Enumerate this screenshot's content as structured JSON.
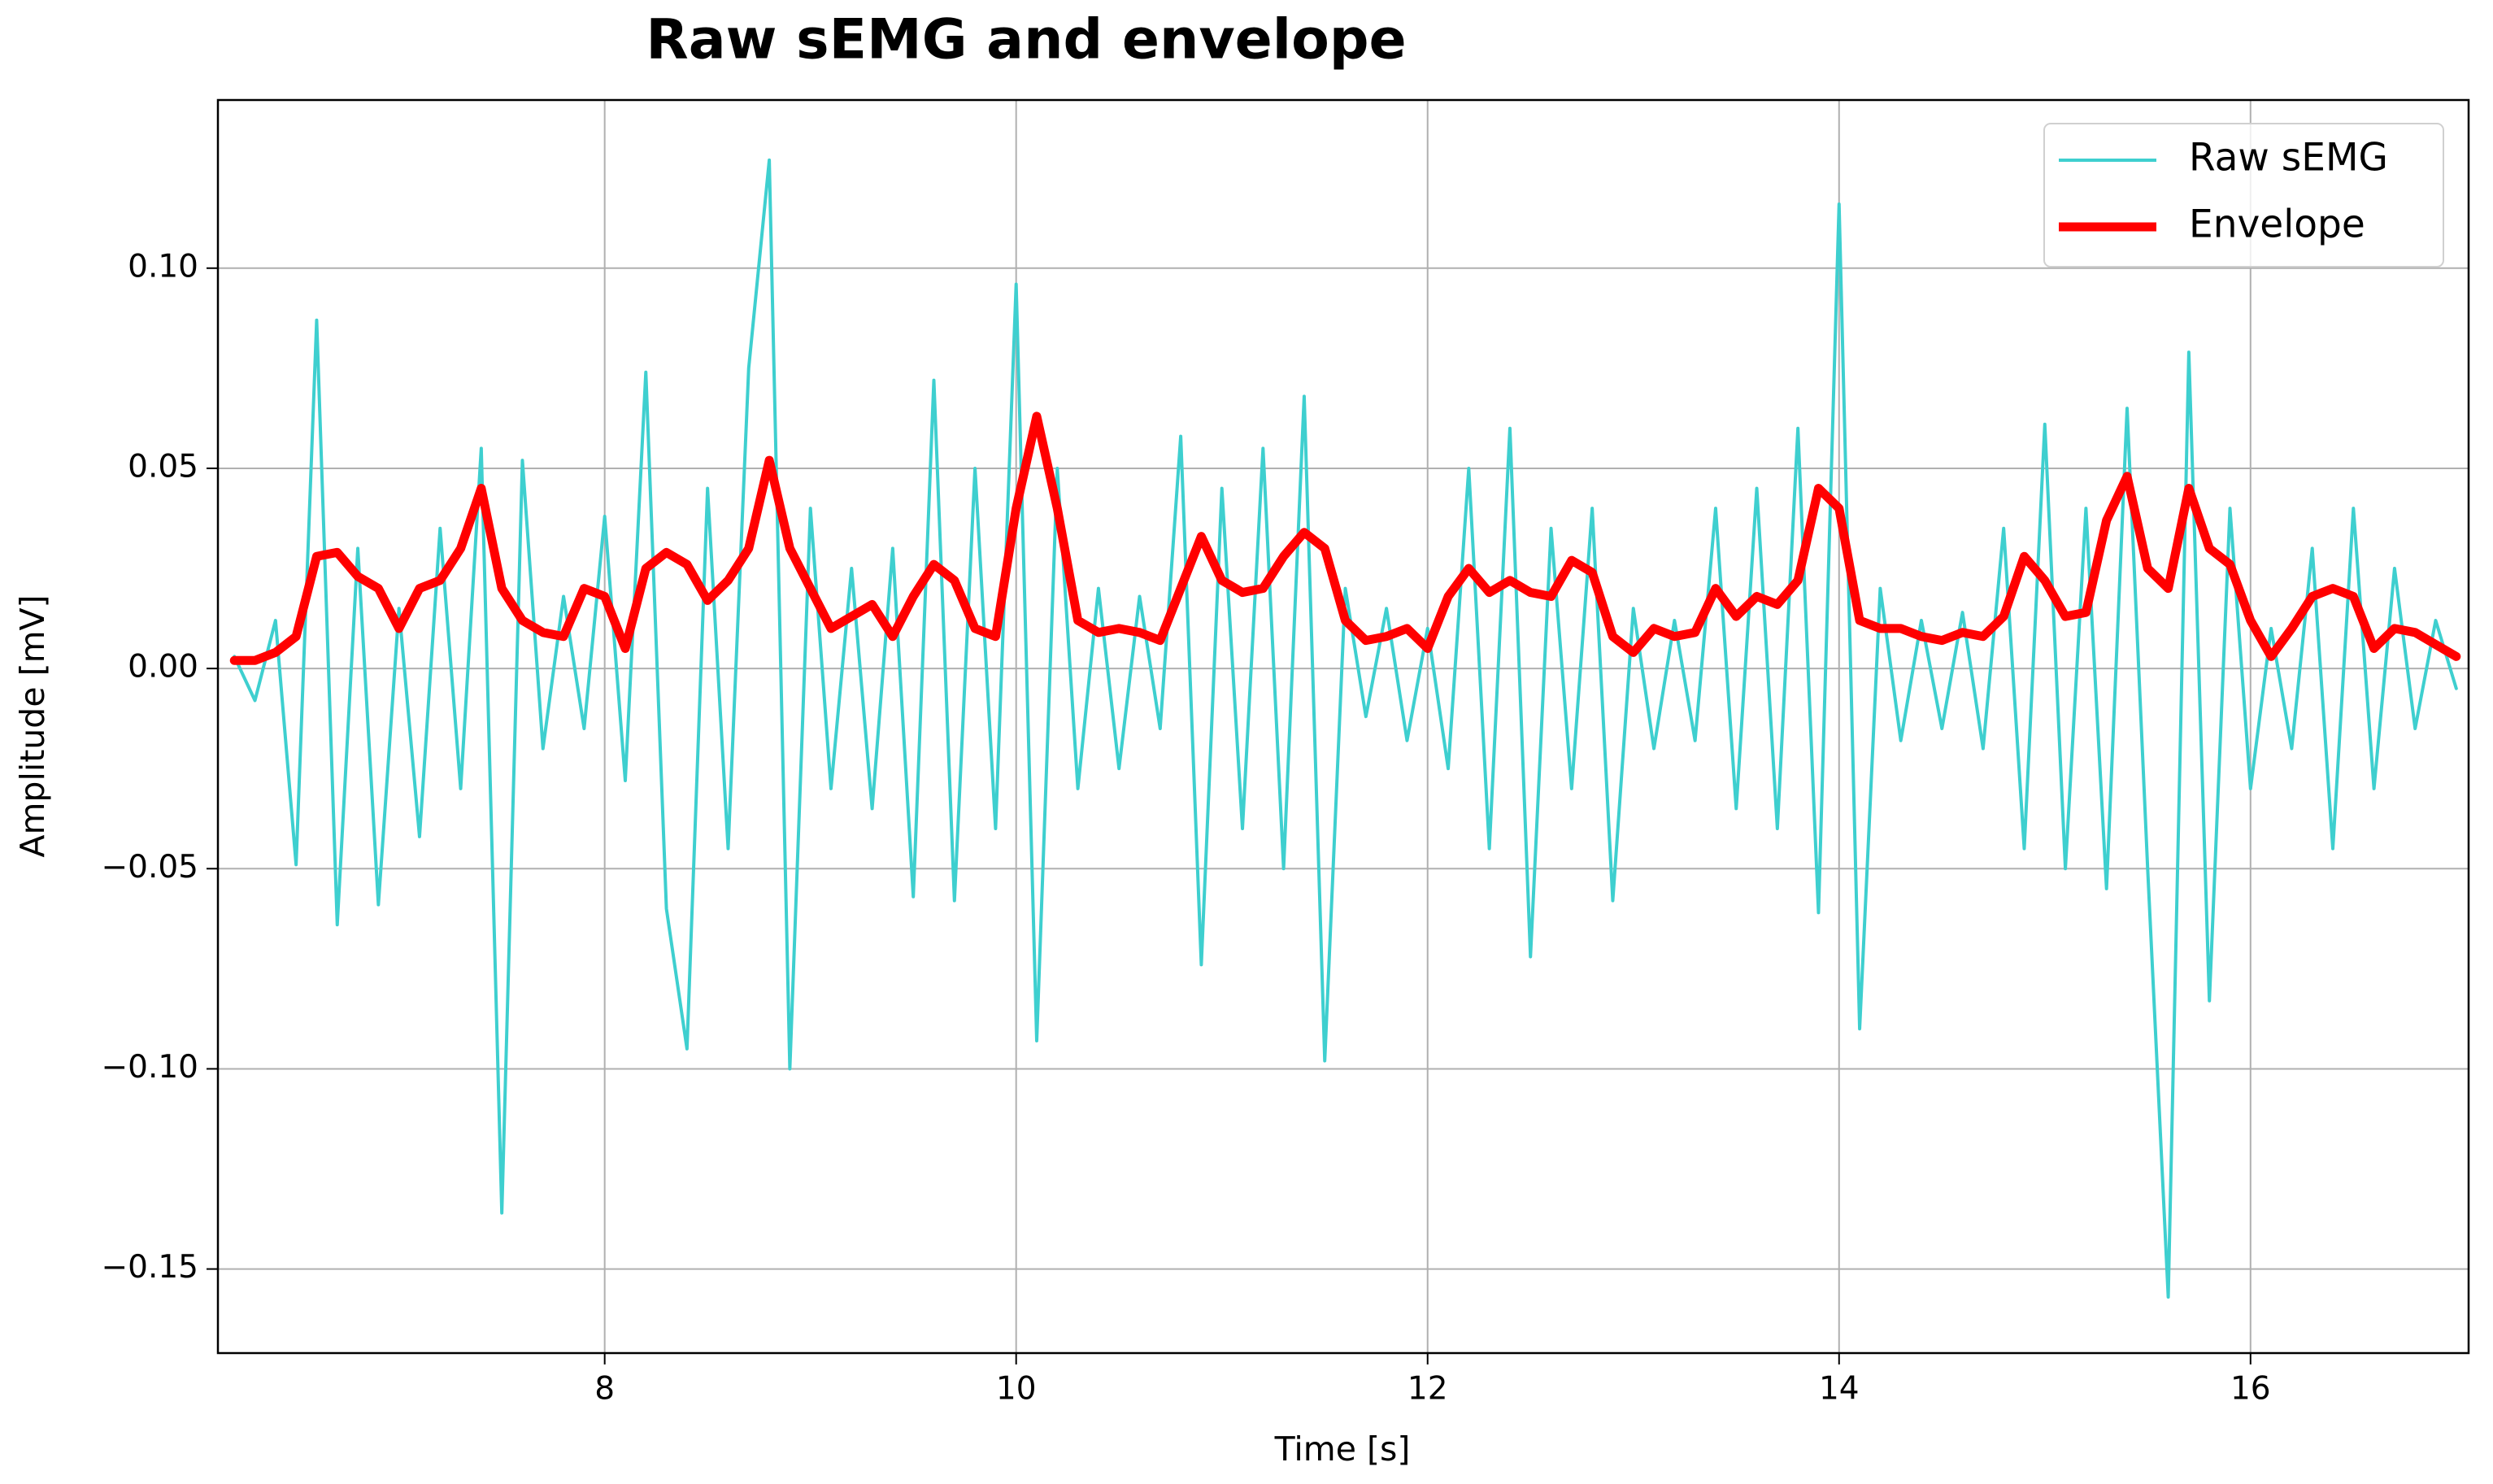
{
  "chart_data": {
    "type": "line",
    "title": "Raw sEMG and envelope",
    "xlabel": "Time [s]",
    "ylabel": "Amplitude [mV]",
    "x": [
      6.2,
      6.3,
      6.4,
      6.5,
      6.6,
      6.7,
      6.8,
      6.9,
      7.0,
      7.1,
      7.2,
      7.3,
      7.4,
      7.5,
      7.6,
      7.7,
      7.8,
      7.9,
      8.0,
      8.1,
      8.2,
      8.3,
      8.4,
      8.5,
      8.6,
      8.7,
      8.8,
      8.9,
      9.0,
      9.1,
      9.2,
      9.3,
      9.4,
      9.5,
      9.6,
      9.7,
      9.8,
      9.9,
      10.0,
      10.1,
      10.2,
      10.3,
      10.4,
      10.5,
      10.6,
      10.7,
      10.8,
      10.9,
      11.0,
      11.1,
      11.2,
      11.3,
      11.4,
      11.5,
      11.6,
      11.7,
      11.8,
      11.9,
      12.0,
      12.1,
      12.2,
      12.3,
      12.4,
      12.5,
      12.6,
      12.7,
      12.8,
      12.9,
      13.0,
      13.1,
      13.2,
      13.3,
      13.4,
      13.5,
      13.6,
      13.7,
      13.8,
      13.9,
      14.0,
      14.1,
      14.2,
      14.3,
      14.4,
      14.5,
      14.6,
      14.7,
      14.8,
      14.9,
      15.0,
      15.1,
      15.2,
      15.3,
      15.4,
      15.5,
      15.6,
      15.7,
      15.8,
      15.9,
      16.0,
      16.1,
      16.2,
      16.3,
      16.4,
      16.5,
      16.6,
      16.7,
      16.8,
      16.9,
      17.0
    ],
    "series": [
      {
        "name": "Raw sEMG",
        "color": "#3ecfcf",
        "values": [
          0.003,
          -0.008,
          0.012,
          -0.049,
          0.087,
          -0.064,
          0.03,
          -0.059,
          0.015,
          -0.042,
          0.035,
          -0.03,
          0.055,
          -0.136,
          0.052,
          -0.02,
          0.018,
          -0.015,
          0.038,
          -0.028,
          0.074,
          -0.06,
          -0.095,
          0.045,
          -0.045,
          0.075,
          0.127,
          -0.1,
          0.04,
          -0.03,
          0.025,
          -0.035,
          0.03,
          -0.057,
          0.072,
          -0.058,
          0.05,
          -0.04,
          0.096,
          -0.093,
          0.05,
          -0.03,
          0.02,
          -0.025,
          0.018,
          -0.015,
          0.058,
          -0.074,
          0.045,
          -0.04,
          0.055,
          -0.05,
          0.068,
          -0.098,
          0.02,
          -0.012,
          0.015,
          -0.018,
          0.01,
          -0.025,
          0.05,
          -0.045,
          0.06,
          -0.072,
          0.035,
          -0.03,
          0.04,
          -0.058,
          0.015,
          -0.02,
          0.012,
          -0.018,
          0.04,
          -0.035,
          0.045,
          -0.04,
          0.06,
          -0.061,
          0.116,
          -0.09,
          0.02,
          -0.018,
          0.012,
          -0.015,
          0.014,
          -0.02,
          0.035,
          -0.045,
          0.061,
          -0.05,
          0.04,
          -0.055,
          0.065,
          -0.05,
          -0.157,
          0.079,
          -0.083,
          0.04,
          -0.03,
          0.01,
          -0.02,
          0.03,
          -0.045,
          0.04,
          -0.03,
          0.025,
          -0.015,
          0.012,
          -0.005
        ]
      },
      {
        "name": "Envelope",
        "color": "#ff0000",
        "values": [
          0.002,
          0.002,
          0.004,
          0.008,
          0.028,
          0.029,
          0.023,
          0.02,
          0.01,
          0.02,
          0.022,
          0.03,
          0.045,
          0.02,
          0.012,
          0.009,
          0.008,
          0.02,
          0.018,
          0.005,
          0.025,
          0.029,
          0.026,
          0.017,
          0.022,
          0.03,
          0.052,
          0.03,
          0.02,
          0.01,
          0.013,
          0.016,
          0.008,
          0.018,
          0.026,
          0.022,
          0.01,
          0.008,
          0.04,
          0.063,
          0.04,
          0.012,
          0.009,
          0.01,
          0.009,
          0.007,
          0.02,
          0.033,
          0.022,
          0.019,
          0.02,
          0.028,
          0.034,
          0.03,
          0.012,
          0.007,
          0.008,
          0.01,
          0.005,
          0.018,
          0.025,
          0.019,
          0.022,
          0.019,
          0.018,
          0.027,
          0.024,
          0.008,
          0.004,
          0.01,
          0.008,
          0.009,
          0.02,
          0.013,
          0.018,
          0.016,
          0.022,
          0.045,
          0.04,
          0.012,
          0.01,
          0.01,
          0.008,
          0.007,
          0.009,
          0.008,
          0.013,
          0.028,
          0.022,
          0.013,
          0.014,
          0.037,
          0.048,
          0.025,
          0.02,
          0.045,
          0.03,
          0.026,
          0.012,
          0.003,
          0.01,
          0.018,
          0.02,
          0.018,
          0.005,
          0.01,
          0.009,
          0.006,
          0.003
        ]
      }
    ],
    "xlim": [
      6.12,
      17.06
    ],
    "ylim": [
      -0.171,
      0.142
    ],
    "xticks": [
      8,
      10,
      12,
      14,
      16
    ],
    "yticks": [
      {
        "value": -0.15,
        "label": "−0.15"
      },
      {
        "value": -0.1,
        "label": "−0.10"
      },
      {
        "value": -0.05,
        "label": "−0.05"
      },
      {
        "value": 0,
        "label": "0.00"
      },
      {
        "value": 0.05,
        "label": "0.05"
      },
      {
        "value": 0.1,
        "label": "0.10"
      }
    ],
    "grid": true,
    "legend": "upper right"
  }
}
